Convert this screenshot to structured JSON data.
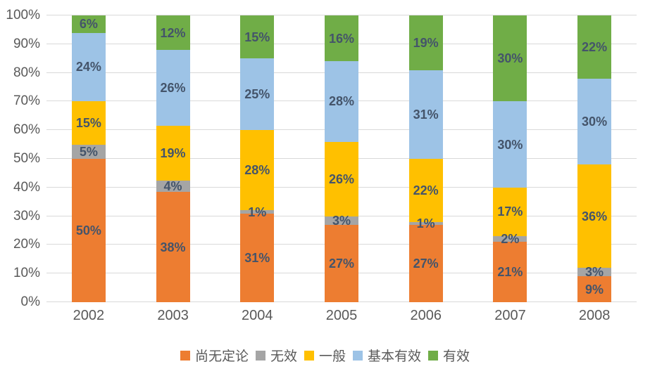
{
  "chart_data": {
    "type": "bar",
    "stacked": true,
    "percent_stacked": true,
    "title": "",
    "xlabel": "",
    "ylabel": "",
    "categories": [
      "2002",
      "2003",
      "2004",
      "2005",
      "2006",
      "2007",
      "2008"
    ],
    "series": [
      {
        "name": "尚无定论",
        "color": "#ED7D31",
        "values": [
          50,
          38,
          31,
          27,
          27,
          21,
          9
        ]
      },
      {
        "name": "无效",
        "color": "#A5A5A5",
        "values": [
          5,
          4,
          1,
          3,
          1,
          2,
          3
        ]
      },
      {
        "name": "一般",
        "color": "#FFC000",
        "values": [
          15,
          19,
          28,
          26,
          22,
          17,
          36
        ]
      },
      {
        "name": "基本有效",
        "color": "#9DC3E6",
        "values": [
          24,
          26,
          25,
          28,
          31,
          30,
          30
        ]
      },
      {
        "name": "有效",
        "color": "#70AD47",
        "values": [
          6,
          12,
          15,
          16,
          19,
          30,
          22
        ]
      }
    ],
    "data_labels": true,
    "data_label_suffix": "%",
    "y_ticks": [
      "0%",
      "10%",
      "20%",
      "30%",
      "40%",
      "50%",
      "60%",
      "70%",
      "80%",
      "90%",
      "100%"
    ],
    "ylim": [
      0,
      100
    ],
    "grid": true,
    "legend_position": "bottom"
  },
  "style_colors": {
    "grid": "#d9d9d9",
    "axis_text": "#595959",
    "data_label_text": "#44546A",
    "background": "#ffffff"
  }
}
